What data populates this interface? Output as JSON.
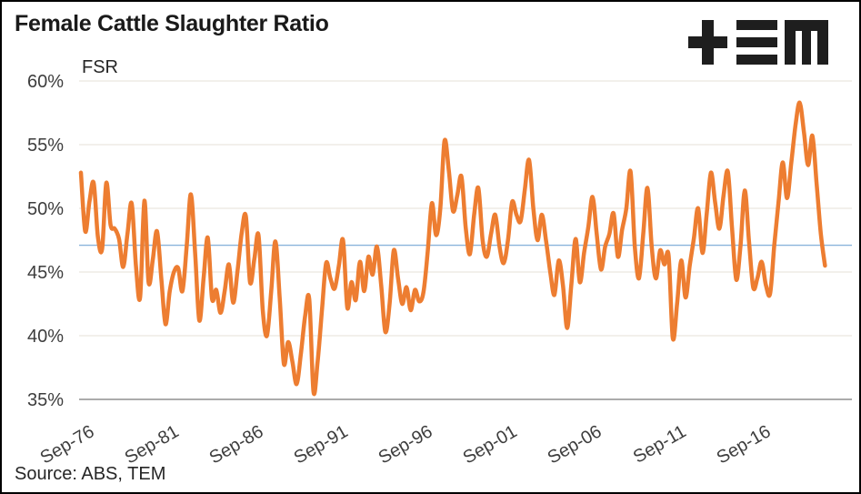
{
  "header": {
    "title": "Female Cattle Slaughter Ratio",
    "logo_name": "TEM"
  },
  "footer": {
    "source": "Source: ABS, TEM"
  },
  "chart_data": {
    "type": "line",
    "title": "FSR",
    "series_label": "FSR",
    "unit": "%",
    "frequency": "quarterly",
    "start_period": "Sep-76",
    "end_period": "Sep-20",
    "ylim": [
      35,
      60
    ],
    "grid": "horizontal-only",
    "legend_position": "none",
    "average_line": 47.1,
    "y_ticks": [
      {
        "label": "60%",
        "value": 60
      },
      {
        "label": "55%",
        "value": 55
      },
      {
        "label": "50%",
        "value": 50
      },
      {
        "label": "45%",
        "value": 45
      },
      {
        "label": "40%",
        "value": 40
      },
      {
        "label": "35%",
        "value": 35
      }
    ],
    "x_tick_labels": [
      "Sep-76",
      "Sep-81",
      "Sep-86",
      "Sep-91",
      "Sep-96",
      "Sep-01",
      "Sep-06",
      "Sep-11",
      "Sep-16"
    ],
    "x_tick_interval_quarters": 20,
    "colors": {
      "line": "#ED7D31",
      "average": "#8AB4DC",
      "grid": "#E9E7DF",
      "axis": "#ABABAB",
      "text": "#3d3d3d"
    },
    "values": [
      52.8,
      48.2,
      50.5,
      52.0,
      47.8,
      46.8,
      52.0,
      48.7,
      48.4,
      47.6,
      45.4,
      48.0,
      50.4,
      45.5,
      43.0,
      50.6,
      44.2,
      46.0,
      48.2,
      44.5,
      40.9,
      43.5,
      45.0,
      45.3,
      43.5,
      47.0,
      51.1,
      46.5,
      41.2,
      44.5,
      47.7,
      42.9,
      43.6,
      41.8,
      43.5,
      45.6,
      42.6,
      45.0,
      48.0,
      49.4,
      44.2,
      46.0,
      47.9,
      42.0,
      40.0,
      43.5,
      47.4,
      43.0,
      37.8,
      39.5,
      38.0,
      36.2,
      38.5,
      41.5,
      42.9,
      35.6,
      38.0,
      42.0,
      45.7,
      44.5,
      43.7,
      45.5,
      47.5,
      42.2,
      44.2,
      42.8,
      45.8,
      43.5,
      46.2,
      44.8,
      47.0,
      44.0,
      40.3,
      42.5,
      46.7,
      44.5,
      42.5,
      43.8,
      42.0,
      43.6,
      42.7,
      43.4,
      46.5,
      50.4,
      47.9,
      50.0,
      55.3,
      53.0,
      49.8,
      51.0,
      52.5,
      48.5,
      46.4,
      49.5,
      51.6,
      47.5,
      46.2,
      48.0,
      49.5,
      47.0,
      45.7,
      47.5,
      50.5,
      49.5,
      49.0,
      51.5,
      53.8,
      50.0,
      47.5,
      49.5,
      47.5,
      45.0,
      43.2,
      45.9,
      44.0,
      40.6,
      44.0,
      47.6,
      44.2,
      46.5,
      48.5,
      50.9,
      48.0,
      45.2,
      47.0,
      48.0,
      49.6,
      46.2,
      48.3,
      50.0,
      52.9,
      47.0,
      44.5,
      48.0,
      51.6,
      47.0,
      44.5,
      46.7,
      45.6,
      46.3,
      39.8,
      42.5,
      45.9,
      43.0,
      45.5,
      47.7,
      50.0,
      46.5,
      49.5,
      52.8,
      50.5,
      48.4,
      51.0,
      52.9,
      48.5,
      44.4,
      47.0,
      51.4,
      47.5,
      43.8,
      44.5,
      45.8,
      44.0,
      43.3,
      47.1,
      50.5,
      53.6,
      50.8,
      53.5,
      56.5,
      58.3,
      56.0,
      53.4,
      55.7,
      52.0,
      48.0,
      45.5
    ]
  }
}
